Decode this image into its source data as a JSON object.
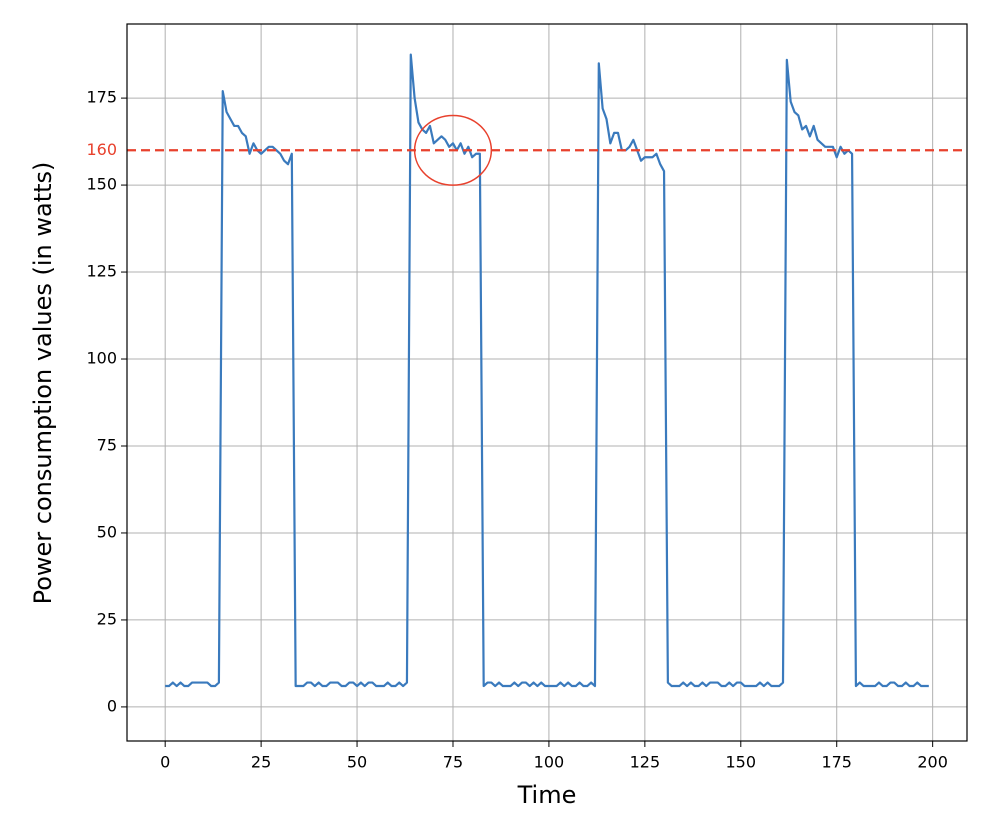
{
  "chart_data": {
    "type": "line",
    "xlabel": "Time",
    "ylabel": "Power consumption values (in watts)",
    "color": "#3a7abd",
    "x": [
      0,
      1,
      2,
      3,
      4,
      5,
      6,
      7,
      8,
      9,
      10,
      11,
      12,
      13,
      14,
      15,
      16,
      17,
      18,
      19,
      20,
      21,
      22,
      23,
      24,
      25,
      26,
      27,
      28,
      29,
      30,
      31,
      32,
      33,
      34,
      35,
      36,
      37,
      38,
      39,
      40,
      41,
      42,
      43,
      44,
      45,
      46,
      47,
      48,
      49,
      50,
      51,
      52,
      53,
      54,
      55,
      56,
      57,
      58,
      59,
      60,
      61,
      62,
      63,
      64,
      65,
      66,
      67,
      68,
      69,
      70,
      71,
      72,
      73,
      74,
      75,
      76,
      77,
      78,
      79,
      80,
      81,
      82,
      83,
      84,
      85,
      86,
      87,
      88,
      89,
      90,
      91,
      92,
      93,
      94,
      95,
      96,
      97,
      98,
      99,
      100,
      101,
      102,
      103,
      104,
      105,
      106,
      107,
      108,
      109,
      110,
      111,
      112,
      113,
      114,
      115,
      116,
      117,
      118,
      119,
      120,
      121,
      122,
      123,
      124,
      125,
      126,
      127,
      128,
      129,
      130,
      131,
      132,
      133,
      134,
      135,
      136,
      137,
      138,
      139,
      140,
      141,
      142,
      143,
      144,
      145,
      146,
      147,
      148,
      149,
      150,
      151,
      152,
      153,
      154,
      155,
      156,
      157,
      158,
      159,
      160,
      161,
      162,
      163,
      164,
      165,
      166,
      167,
      168,
      169,
      170,
      171,
      172,
      173,
      174,
      175,
      176,
      177,
      178,
      179,
      180,
      181,
      182,
      183,
      184,
      185,
      186,
      187,
      188,
      189,
      190,
      191,
      192,
      193,
      194,
      195,
      196,
      197,
      198,
      199
    ],
    "values": [
      6,
      6,
      7,
      6,
      7,
      6,
      6,
      7,
      7,
      7,
      7,
      7,
      6,
      6,
      7,
      177,
      171,
      169,
      167,
      167,
      165,
      164,
      159,
      162,
      160,
      159,
      160,
      161,
      161,
      160,
      159,
      157,
      156,
      159,
      6,
      6,
      6,
      7,
      7,
      6,
      7,
      6,
      6,
      7,
      7,
      7,
      6,
      6,
      7,
      7,
      6,
      7,
      6,
      7,
      7,
      6,
      6,
      6,
      7,
      6,
      6,
      7,
      6,
      7,
      187.5,
      175,
      168,
      166,
      165,
      167,
      162,
      163,
      164,
      163,
      161,
      162,
      160,
      162,
      159,
      161,
      158,
      159,
      159,
      6,
      7,
      7,
      6,
      7,
      6,
      6,
      6,
      7,
      6,
      7,
      7,
      6,
      7,
      6,
      7,
      6,
      6,
      6,
      6,
      7,
      6,
      7,
      6,
      6,
      7,
      6,
      6,
      7,
      6,
      185,
      172,
      169,
      162,
      165,
      165,
      160,
      160,
      161,
      163,
      160,
      157,
      158,
      158,
      158,
      159,
      156,
      154,
      7,
      6,
      6,
      6,
      7,
      6,
      7,
      6,
      6,
      7,
      6,
      7,
      7,
      7,
      6,
      6,
      7,
      6,
      7,
      7,
      6,
      6,
      6,
      6,
      7,
      6,
      7,
      6,
      6,
      6,
      7,
      186,
      174,
      171,
      170,
      166,
      167,
      164,
      167,
      163,
      162,
      161,
      161,
      161,
      158,
      161,
      159,
      160,
      159,
      6,
      7,
      6,
      6,
      6,
      6,
      7,
      6,
      6,
      7,
      7,
      6,
      6,
      7,
      6,
      6,
      7,
      6,
      6,
      6
    ],
    "xlim": [
      -9.95,
      208.95
    ],
    "ylim": [
      -9.8,
      196.3
    ],
    "xticks": [
      0,
      25,
      50,
      75,
      100,
      125,
      150,
      175,
      200
    ],
    "yticks": [
      0,
      25,
      50,
      75,
      100,
      125,
      150,
      175
    ],
    "grid": true,
    "hline": {
      "value": 160,
      "label": "160",
      "color": "#e8412d"
    },
    "highlight": {
      "x": 75,
      "y": 160,
      "rx": 10,
      "ry": 10,
      "color": "#e8412d"
    }
  }
}
